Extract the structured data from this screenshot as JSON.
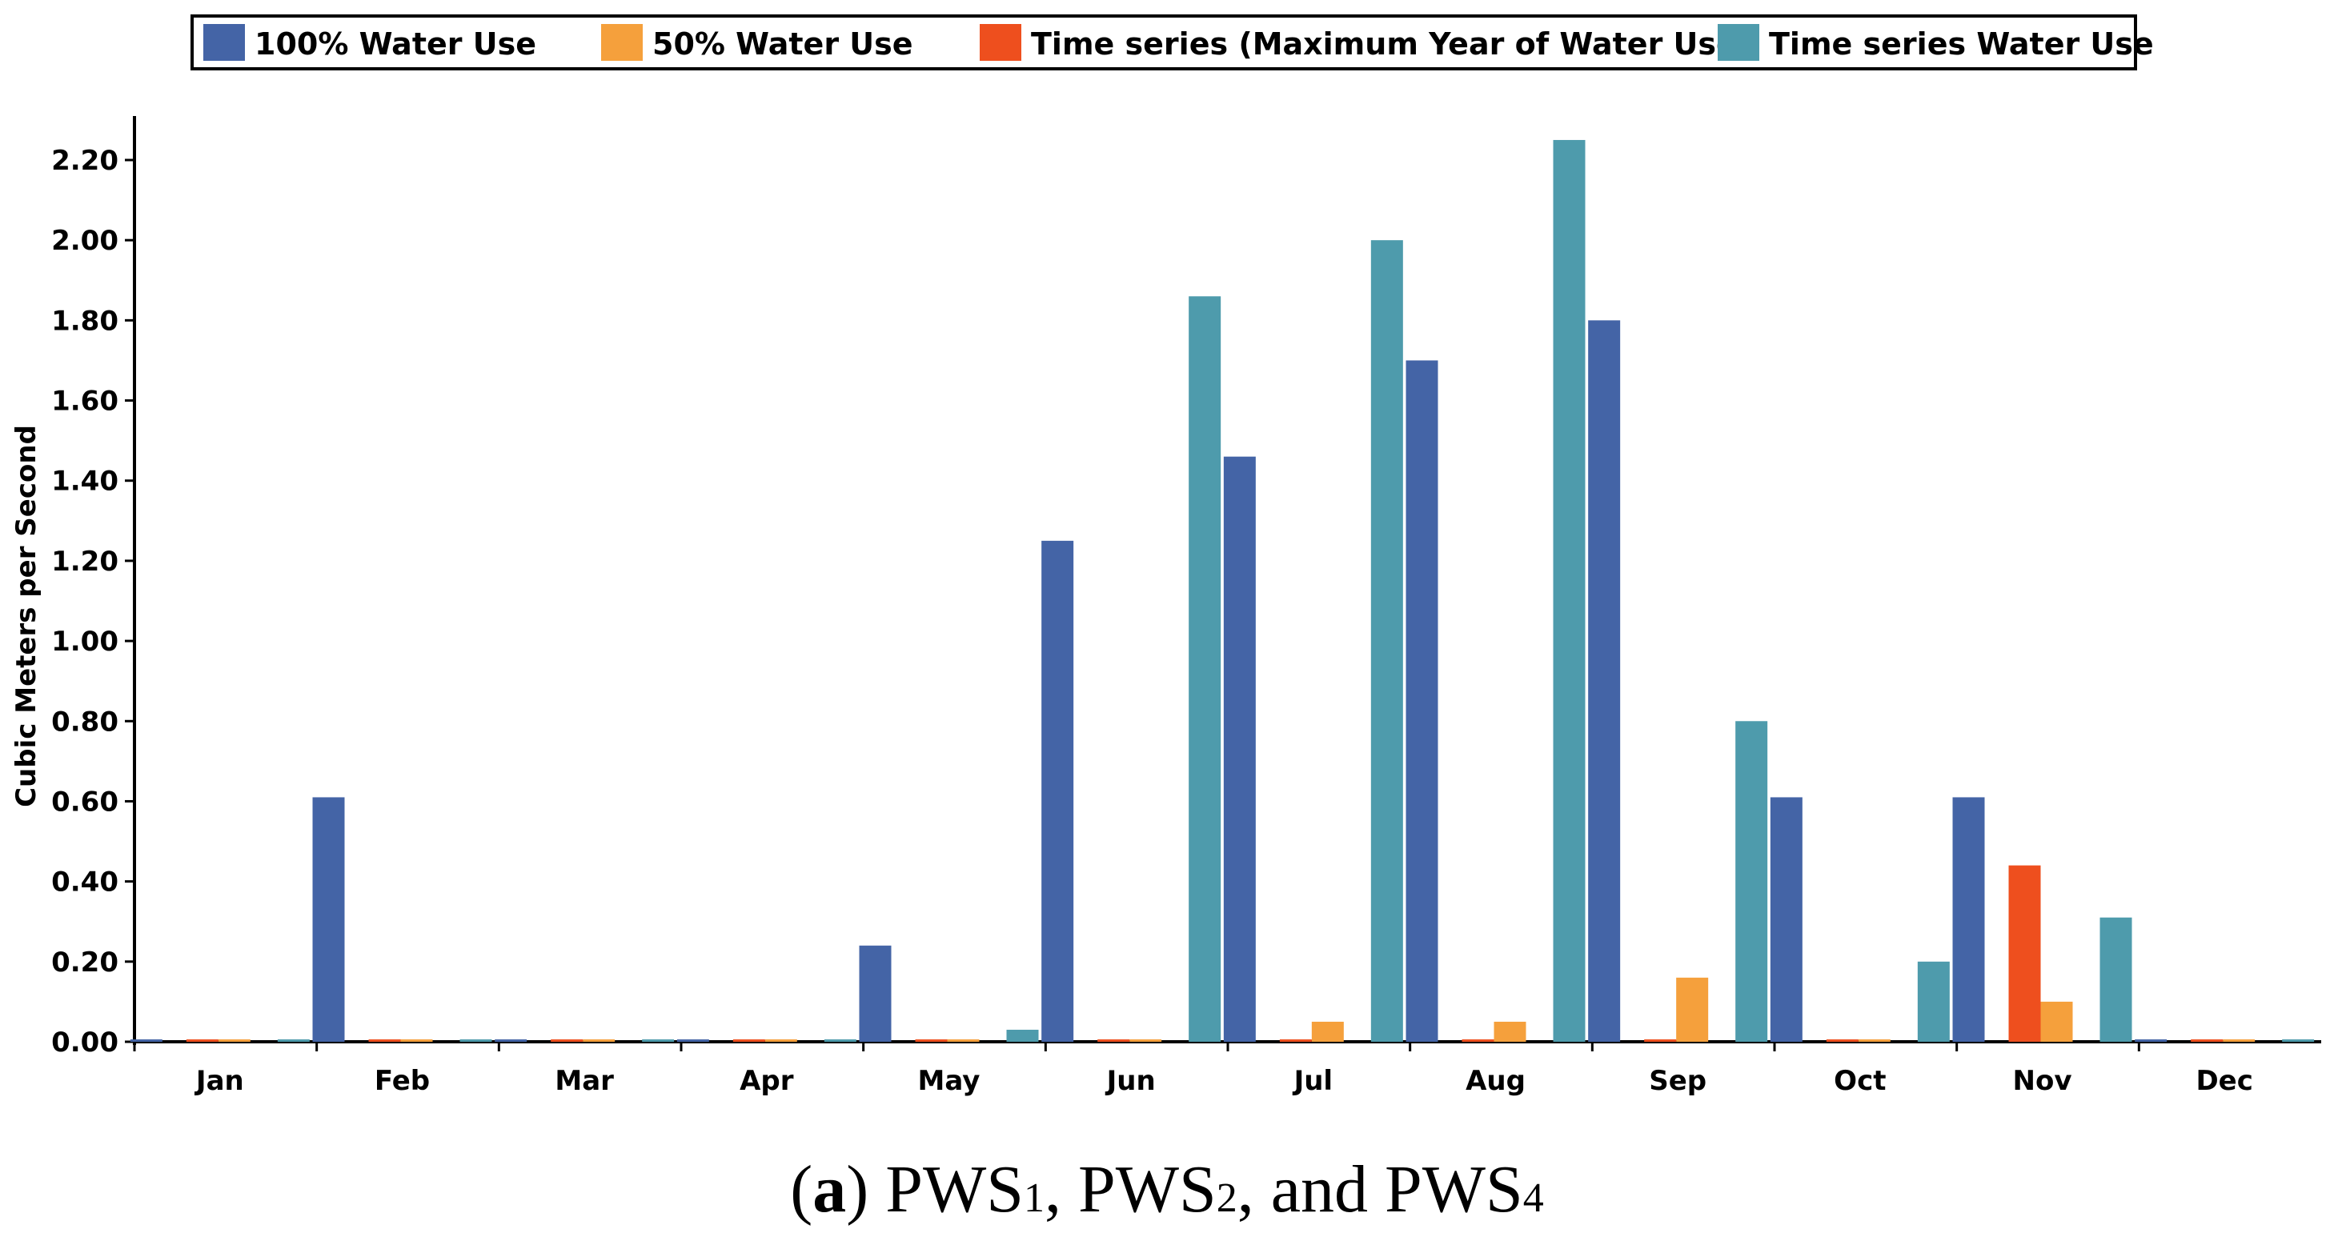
{
  "chart_data": {
    "type": "bar",
    "title": "",
    "xlabel": "",
    "ylabel": "Cubic Meters per Second",
    "ylim": [
      0,
      2.25
    ],
    "yticks": [
      "0.00",
      "0.20",
      "0.40",
      "0.60",
      "0.80",
      "1.00",
      "1.20",
      "1.40",
      "1.60",
      "1.80",
      "2.00",
      "2.20"
    ],
    "categories": [
      "Jan",
      "Feb",
      "Mar",
      "Apr",
      "May",
      "Jun",
      "Jul",
      "Aug",
      "Sep",
      "Oct",
      "Nov",
      "Dec"
    ],
    "grid": false,
    "legend_position": "top",
    "series": [
      {
        "name": "100% Water Use",
        "color": "#4464A6",
        "values": [
          0.0,
          0.61,
          0.005,
          0.0,
          0.24,
          1.25,
          1.46,
          1.7,
          1.8,
          0.61,
          0.61,
          0.0
        ]
      },
      {
        "name": "50% Water Use",
        "color": "#F5A03C",
        "values": [
          0.0,
          0.0,
          0.0,
          0.0,
          0.0,
          0.0,
          0.05,
          0.05,
          0.16,
          0.0,
          0.1,
          0.0
        ]
      },
      {
        "name": "Time series (Maximum Year of Water Use)",
        "color": "#EE4F1E",
        "values": [
          0.0,
          0.0,
          0.0,
          0.0,
          0.0,
          0.0,
          0.0,
          0.0,
          0.0,
          0.005,
          0.44,
          0.0
        ]
      },
      {
        "name": "Time series Water Use",
        "color": "#4E9BAC",
        "values": [
          0.0,
          0.0,
          0.0,
          0.0,
          0.03,
          1.86,
          2.0,
          2.25,
          0.8,
          0.2,
          0.31,
          0.0
        ]
      }
    ]
  },
  "caption": {
    "label": "a",
    "text_before": "PWS",
    "sub1": "1",
    "text_mid1": ", PWS",
    "sub2": "2",
    "text_mid2": ", and PWS",
    "sub3": "4"
  }
}
